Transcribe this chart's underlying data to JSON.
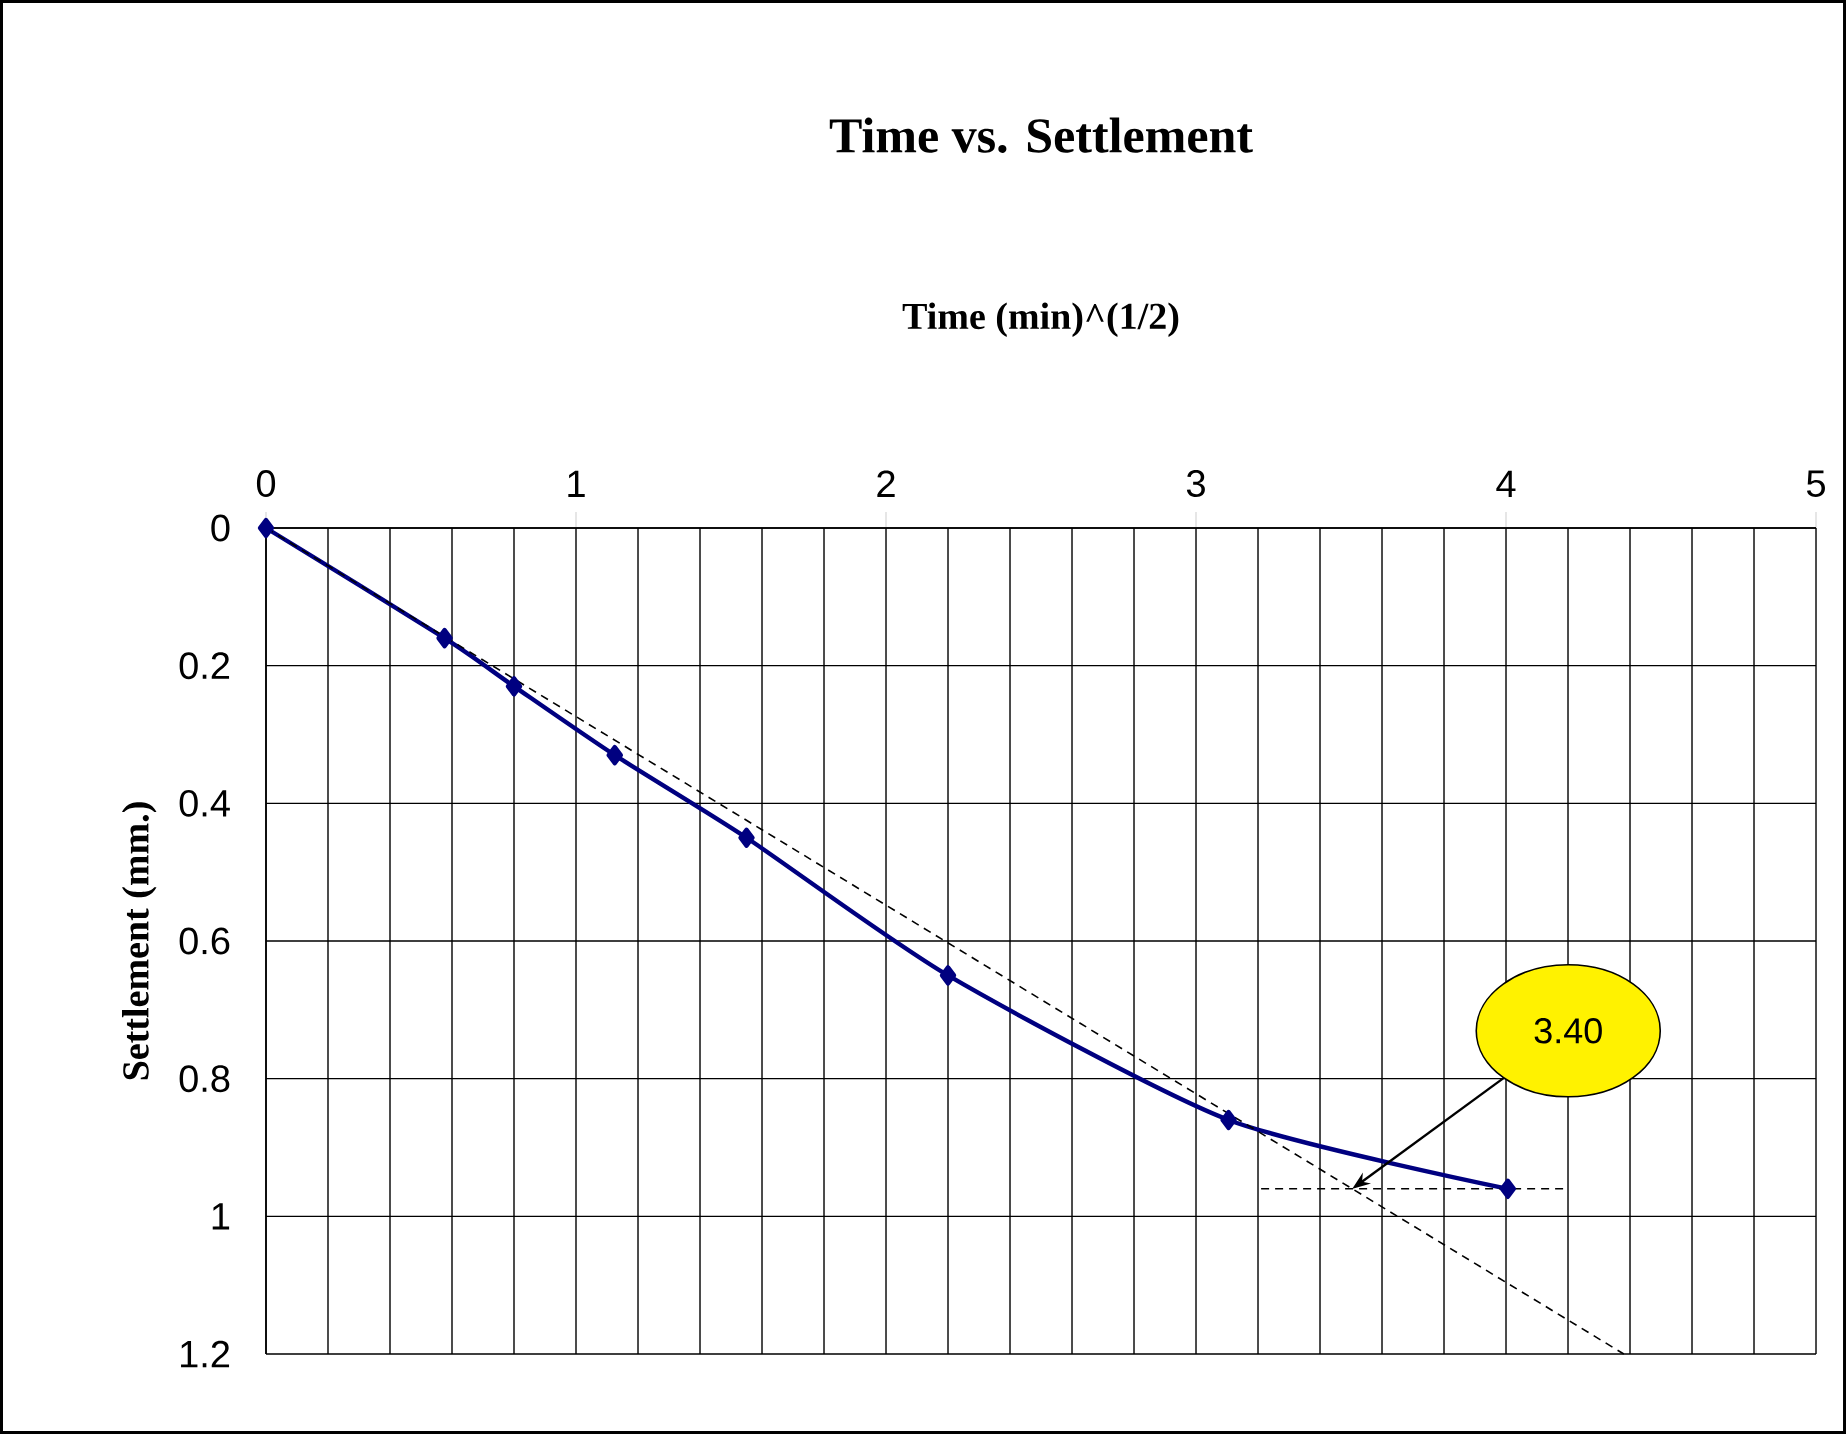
{
  "chart_data": {
    "type": "line",
    "title": "Time vs. Settlement",
    "xlabel": "Time (min)^(1/2)",
    "ylabel": "Settlement (mm.)",
    "x": [
      0,
      0.576,
      0.8,
      1.125,
      1.55,
      2.2,
      3.105,
      4.006
    ],
    "series": [
      {
        "color": "#000080",
        "values": [
          0,
          0.16,
          0.23,
          0.33,
          0.45,
          0.65,
          0.86,
          0.96
        ]
      },
      {
        "color": "#000000",
        "x": [
          0,
          4.38
        ],
        "values": [
          0,
          1.2
        ],
        "marker": "none",
        "line_style": "dashed"
      },
      {
        "color": "#000000",
        "x": [
          3.21,
          4.19
        ],
        "values": [
          0.96,
          0.96
        ],
        "marker": "none",
        "line_style": "dashed"
      }
    ],
    "xlim": [
      0,
      5
    ],
    "ylim": [
      1.2,
      0
    ],
    "xticks": [
      0,
      1,
      2,
      3,
      4,
      5
    ],
    "yticks": [
      0,
      0.2,
      0.4,
      0.6,
      0.8,
      1,
      1.2
    ],
    "grid": true,
    "marker": "diamond",
    "line_style": "solid",
    "annotations": [
      "3.40"
    ]
  }
}
